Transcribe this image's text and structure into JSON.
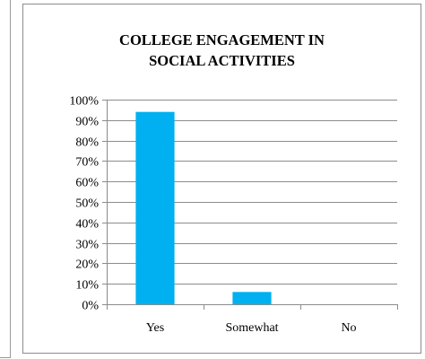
{
  "chart_data": {
    "type": "bar",
    "title_lines": [
      "COLLEGE ENGAGEMENT IN",
      "SOCIAL ACTIVITIES"
    ],
    "categories": [
      "Yes",
      "Somewhat",
      "No"
    ],
    "values": [
      94,
      6,
      0
    ],
    "ylim": [
      0,
      100
    ],
    "yticks": [
      "0%",
      "10%",
      "20%",
      "30%",
      "40%",
      "50%",
      "60%",
      "70%",
      "80%",
      "90%",
      "100%"
    ],
    "grid": true,
    "legend": "none",
    "bar_color": "#00b0f0",
    "grid_color": "#8c8c8c"
  }
}
